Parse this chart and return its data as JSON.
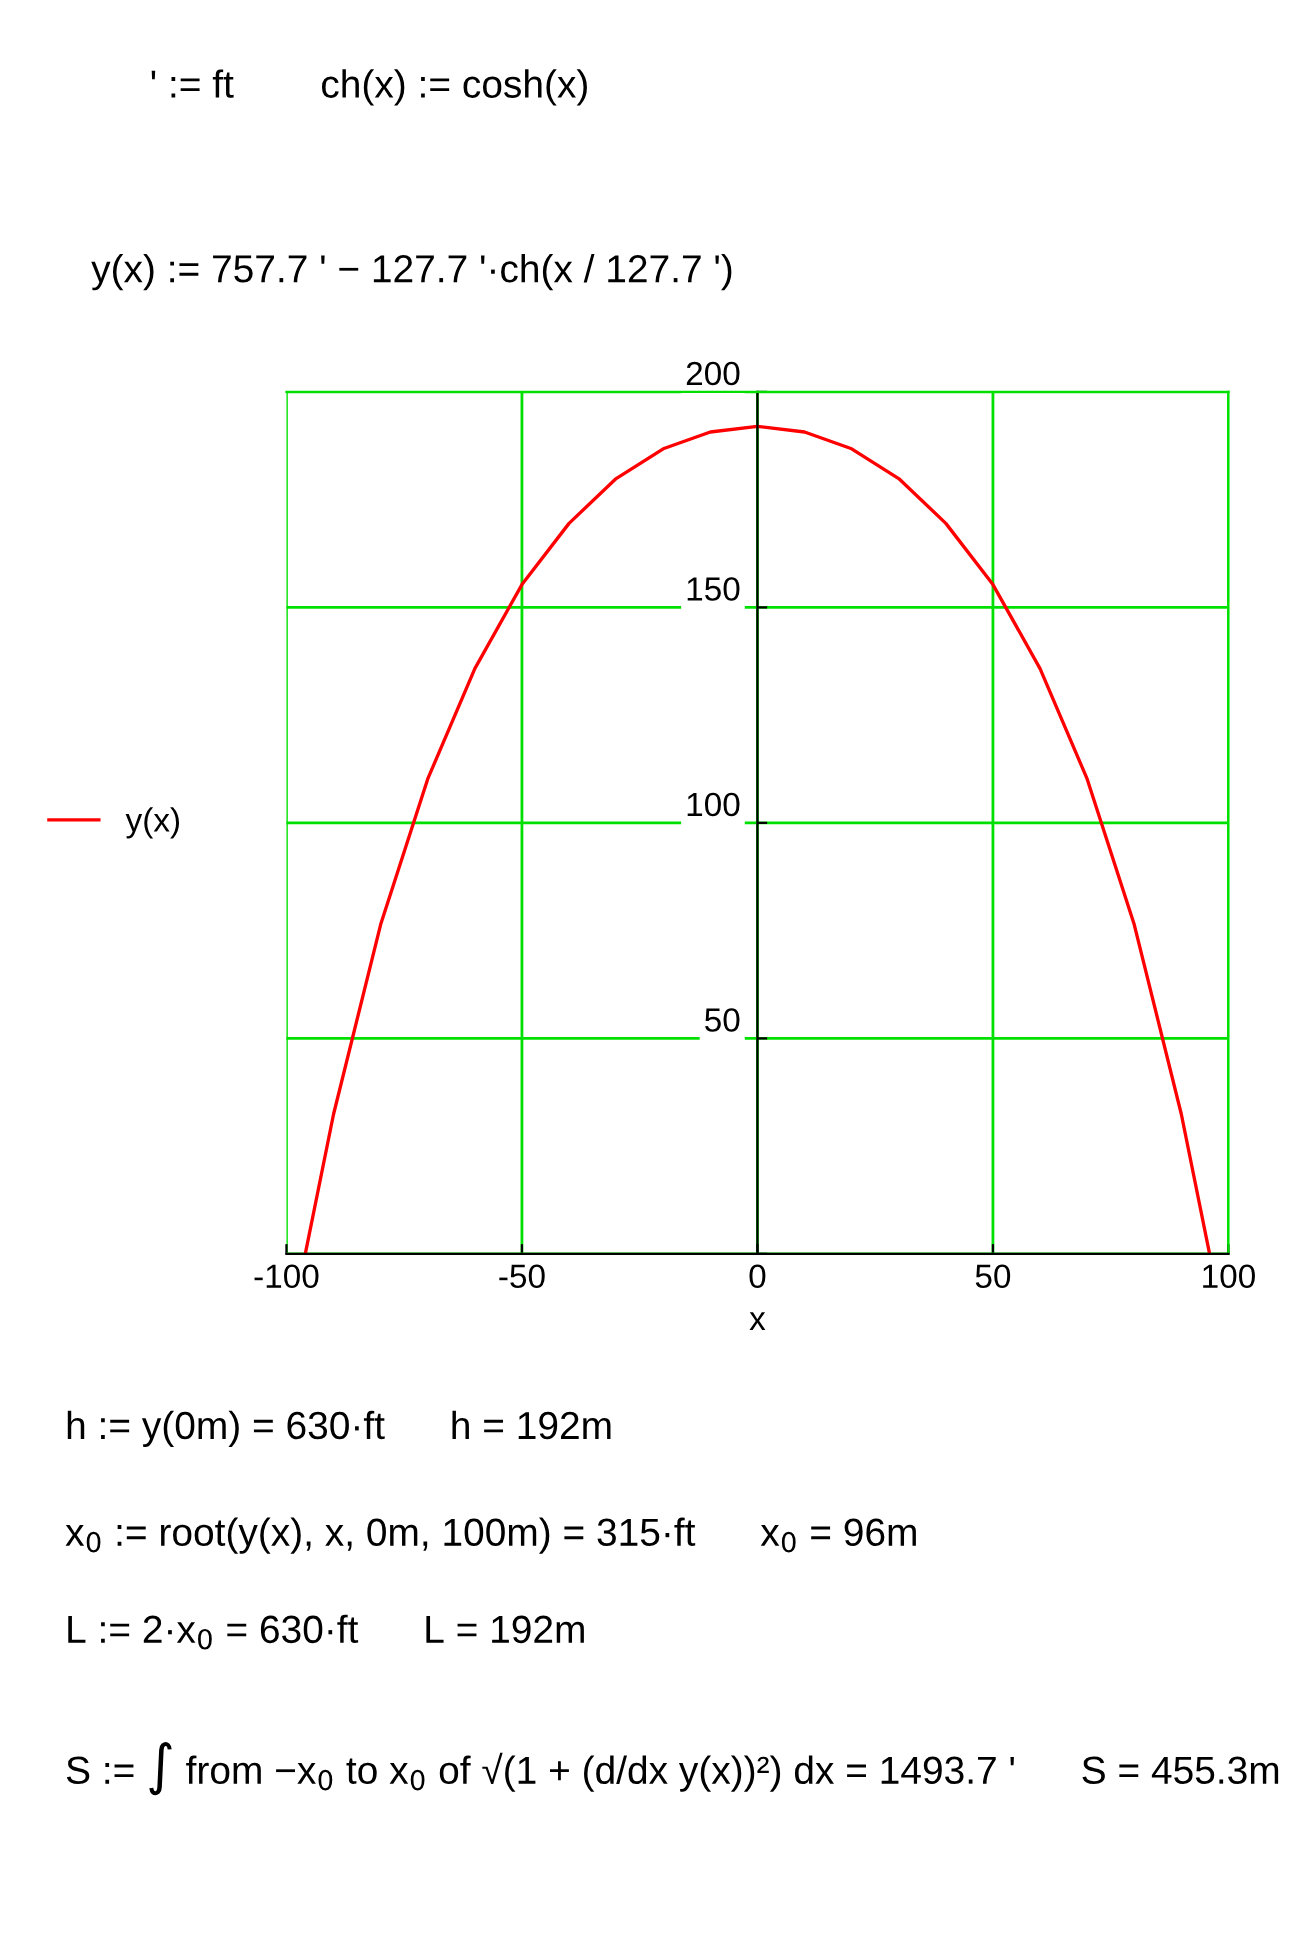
{
  "chart_data": {
    "type": "line",
    "xlabel": "x",
    "x": [
      -96,
      -90,
      -80,
      -70,
      -60,
      -50,
      -40,
      -30,
      -20,
      -10,
      0,
      10,
      20,
      30,
      40,
      50,
      60,
      70,
      80,
      90,
      96
    ],
    "series": [
      {
        "name": "y(x)",
        "color": "#ff0000",
        "values": [
          0,
          32.4,
          76.4,
          110.2,
          135.8,
          155.3,
          169.5,
          179.9,
          186.8,
          190.7,
          192,
          190.7,
          186.8,
          179.9,
          169.5,
          155.3,
          135.8,
          110.2,
          76.4,
          32.4,
          0
        ]
      }
    ],
    "xlim": [
      -100,
      100
    ],
    "ylim": [
      0,
      200
    ],
    "xticks": [
      -100,
      -50,
      0,
      50,
      100
    ],
    "yticks": [
      {
        "value": 0,
        "label": null
      },
      50,
      100,
      150,
      200
    ],
    "grid": true,
    "legend": "left",
    "marker": "none",
    "line_style": "solid",
    "annotations": [
      "' := ft        ch(x) := cosh(x)",
      "y(x) := 757.7 ' − 127.7 '·ch(x / 127.7 ')",
      "h := y(0m) = 630·ft      h = 192m",
      "x$_{0}$ := root(y(x), x, 0m, 100m) = 315·ft      x$_{0}$ = 96m",
      "L := 2·x$_{0}$ = 630·ft      L = 192m",
      "S := ∫ from −x$_{0}$ to x$_{0}$ of √(1 + (d/dx y(x))²) dx = 1493.7 '      S = 455.3m"
    ]
  }
}
